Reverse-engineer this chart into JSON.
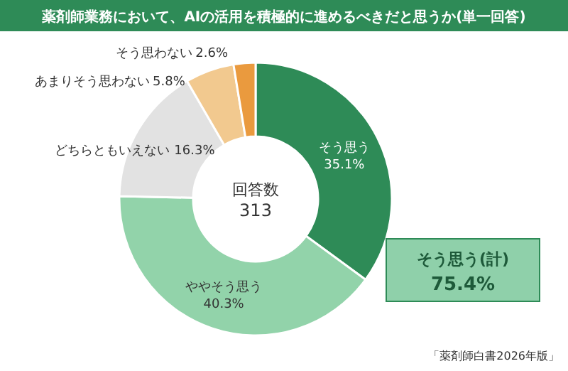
{
  "chart_data": {
    "type": "donut",
    "title": "薬剤師業務において、AIの活用を積極的に進めるべきだと思うか(単一回答)",
    "categories": [
      "そう思う",
      "ややそう思う",
      "どちらともいえない",
      "あまりそう思わない",
      "そう思わない"
    ],
    "values": [
      35.1,
      40.3,
      16.3,
      5.8,
      2.6
    ],
    "colors": [
      "#2e8b57",
      "#92d3aa",
      "#e2e2e2",
      "#f2c98f",
      "#ea9a3e"
    ],
    "value_labels": [
      "35.1%",
      "40.3%",
      "16.3%",
      "5.8%",
      "2.6%"
    ],
    "annotations": [
      "回答数",
      "313",
      "そう思う(計)",
      "75.4%",
      "「薬剤師白書2026年版」"
    ]
  }
}
